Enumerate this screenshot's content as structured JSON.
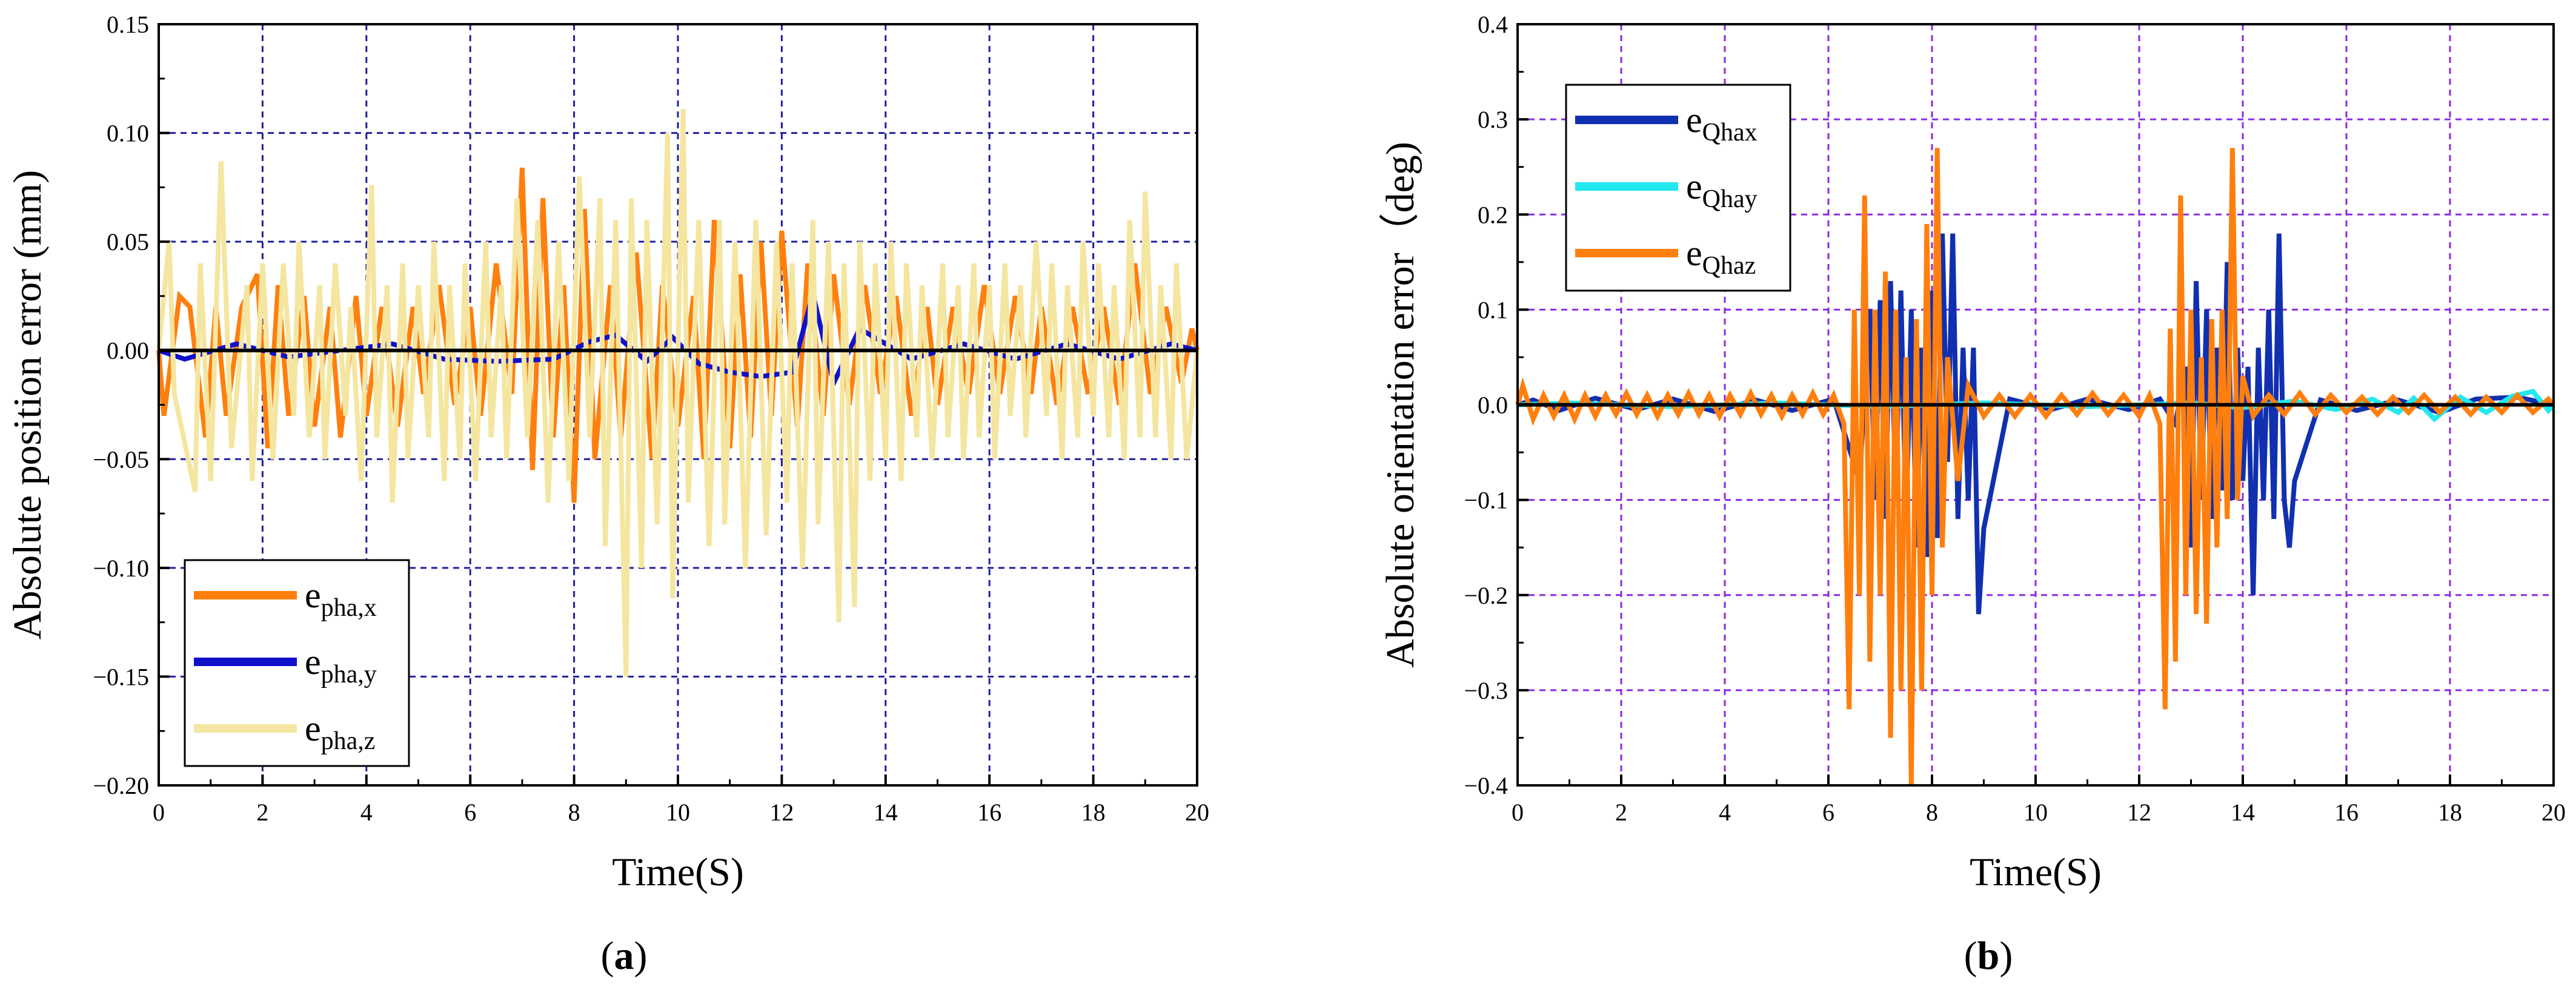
{
  "figure": {
    "panels": [
      "(a)",
      "(b)"
    ]
  },
  "chart_data": [
    {
      "type": "line",
      "panel": "(a)",
      "title": "",
      "xlabel": "Time(S)",
      "ylabel": "Absolute position error (mm)",
      "xlim": [
        0,
        20
      ],
      "ylim": [
        -0.2,
        0.15
      ],
      "xticks": [
        0,
        2,
        4,
        6,
        8,
        10,
        12,
        14,
        16,
        18,
        20
      ],
      "yticks": [
        -0.2,
        -0.15,
        -0.1,
        -0.05,
        0.0,
        0.05,
        0.1,
        0.15
      ],
      "ytick_labels": [
        "−0.20",
        "−0.15",
        "−0.10",
        "−0.05",
        "0.00",
        "0.05",
        "0.10",
        "0.15"
      ],
      "grid": true,
      "grid_color": "#1f1fa0",
      "legend_position": "bottom-left",
      "series": [
        {
          "name": "e",
          "subscript": "pha,x",
          "color": "#ff7f0e",
          "x": [
            0.1,
            0.4,
            0.6,
            0.9,
            1.1,
            1.3,
            1.6,
            1.9,
            2.1,
            2.3,
            2.5,
            2.8,
            3.0,
            3.3,
            3.5,
            3.8,
            4.0,
            4.3,
            4.6,
            4.9,
            5.1,
            5.4,
            5.7,
            6.0,
            6.2,
            6.5,
            6.8,
            7.0,
            7.2,
            7.4,
            7.6,
            7.8,
            8.0,
            8.2,
            8.4,
            8.7,
            8.9,
            9.2,
            9.5,
            9.7,
            10.0,
            10.3,
            10.5,
            10.7,
            11.0,
            11.2,
            11.4,
            11.6,
            11.8,
            12.0,
            12.3,
            12.5,
            12.8,
            13.0,
            13.3,
            13.6,
            13.9,
            14.2,
            14.5,
            14.8,
            15.0,
            15.3,
            15.6,
            15.9,
            16.2,
            16.5,
            16.8,
            17.0,
            17.3,
            17.6,
            17.9,
            18.2,
            18.5,
            18.8,
            19.1,
            19.4,
            19.7,
            19.9
          ],
          "values": [
            -0.03,
            0.025,
            0.02,
            -0.04,
            0.02,
            -0.03,
            0.02,
            0.035,
            -0.045,
            0.03,
            -0.03,
            0.025,
            -0.035,
            0.02,
            -0.04,
            0.025,
            -0.03,
            0.02,
            -0.035,
            0.02,
            -0.02,
            0.03,
            -0.025,
            0.02,
            -0.03,
            0.04,
            -0.02,
            0.084,
            -0.055,
            0.07,
            -0.04,
            0.03,
            -0.07,
            0.065,
            -0.05,
            0.03,
            -0.04,
            0.045,
            -0.05,
            0.03,
            -0.035,
            0.025,
            -0.05,
            0.06,
            -0.045,
            0.035,
            -0.04,
            0.05,
            -0.03,
            0.055,
            -0.035,
            0.04,
            -0.03,
            0.035,
            -0.025,
            0.03,
            -0.02,
            0.025,
            -0.03,
            0.02,
            -0.025,
            0.02,
            -0.02,
            0.03,
            -0.02,
            0.025,
            -0.02,
            0.02,
            -0.025,
            0.02,
            -0.02,
            0.02,
            -0.025,
            0.04,
            -0.02,
            0.02,
            -0.015,
            0.01
          ]
        },
        {
          "name": "e",
          "subscript": "pha,y",
          "color": "#1111cc",
          "x": [
            0.5,
            1.5,
            2.5,
            4.5,
            5.5,
            6.5,
            7.6,
            8.3,
            8.8,
            9.4,
            9.9,
            10.4,
            11.0,
            11.6,
            12.2,
            12.6,
            13.0,
            13.5,
            14.5,
            15.5,
            16.5,
            17.5,
            18.5,
            19.5
          ],
          "values": [
            -0.004,
            0.003,
            -0.003,
            0.003,
            -0.004,
            -0.005,
            -0.004,
            0.004,
            0.007,
            -0.005,
            0.006,
            -0.006,
            -0.01,
            -0.012,
            -0.01,
            0.026,
            -0.015,
            0.01,
            -0.004,
            0.003,
            -0.004,
            0.003,
            -0.004,
            0.003
          ]
        },
        {
          "name": "e",
          "subscript": "pha,z",
          "color": "#f4e6a0",
          "x": [
            0.2,
            0.3,
            0.7,
            0.8,
            1.0,
            1.2,
            1.4,
            1.7,
            1.8,
            2.0,
            2.2,
            2.4,
            2.6,
            2.7,
            2.9,
            3.1,
            3.2,
            3.4,
            3.6,
            3.7,
            3.9,
            4.1,
            4.2,
            4.4,
            4.5,
            4.7,
            4.8,
            5.0,
            5.2,
            5.3,
            5.5,
            5.6,
            5.8,
            5.9,
            6.1,
            6.3,
            6.4,
            6.6,
            6.7,
            6.9,
            7.1,
            7.3,
            7.5,
            7.7,
            7.9,
            8.1,
            8.3,
            8.5,
            8.6,
            8.8,
            9.0,
            9.1,
            9.3,
            9.4,
            9.6,
            9.8,
            9.9,
            10.1,
            10.2,
            10.4,
            10.6,
            10.8,
            10.9,
            11.1,
            11.3,
            11.5,
            11.7,
            11.9,
            12.1,
            12.2,
            12.4,
            12.6,
            12.7,
            12.9,
            13.1,
            13.2,
            13.4,
            13.5,
            13.7,
            13.8,
            14.0,
            14.1,
            14.3,
            14.4,
            14.6,
            14.7,
            14.9,
            15.1,
            15.2,
            15.4,
            15.5,
            15.7,
            15.8,
            16.0,
            16.1,
            16.3,
            16.4,
            16.6,
            16.7,
            16.9,
            17.1,
            17.2,
            17.4,
            17.5,
            17.7,
            17.8,
            18.0,
            18.1,
            18.3,
            18.4,
            18.6,
            18.7,
            18.9,
            19.0,
            19.2,
            19.3,
            19.5,
            19.6,
            19.8
          ],
          "values": [
            0.05,
            -0.02,
            -0.065,
            0.04,
            -0.06,
            0.087,
            -0.045,
            0.03,
            -0.06,
            0.04,
            -0.05,
            0.04,
            -0.03,
            0.05,
            -0.04,
            0.03,
            -0.05,
            0.04,
            -0.03,
            0.02,
            -0.06,
            0.076,
            -0.04,
            0.03,
            -0.07,
            0.04,
            -0.05,
            0.03,
            -0.04,
            0.05,
            -0.06,
            0.03,
            -0.05,
            0.04,
            -0.06,
            0.05,
            -0.04,
            0.03,
            -0.05,
            0.07,
            -0.04,
            0.06,
            -0.07,
            0.05,
            -0.06,
            0.08,
            -0.04,
            0.07,
            -0.09,
            0.06,
            -0.15,
            0.07,
            -0.1,
            0.06,
            -0.08,
            0.1,
            -0.114,
            0.111,
            -0.07,
            0.06,
            -0.09,
            0.06,
            -0.08,
            0.05,
            -0.1,
            0.06,
            -0.085,
            0.05,
            -0.07,
            0.04,
            -0.1,
            0.06,
            -0.08,
            0.05,
            -0.125,
            0.04,
            -0.118,
            0.05,
            -0.06,
            0.04,
            -0.05,
            0.05,
            -0.06,
            0.04,
            -0.04,
            0.03,
            -0.05,
            0.04,
            -0.04,
            0.03,
            -0.05,
            0.04,
            -0.04,
            0.03,
            -0.05,
            0.04,
            -0.03,
            0.03,
            -0.04,
            0.05,
            -0.03,
            0.04,
            -0.05,
            0.03,
            -0.04,
            0.05,
            -0.03,
            0.04,
            -0.04,
            0.03,
            -0.05,
            0.06,
            -0.04,
            0.073,
            -0.04,
            0.03,
            -0.05,
            0.04,
            -0.05
          ]
        }
      ]
    },
    {
      "type": "line",
      "panel": "(b)",
      "title": "",
      "xlabel": "Time(S)",
      "ylabel": "Absolute orientation error（deg)",
      "xlim": [
        0,
        20
      ],
      "ylim": [
        -0.4,
        0.4
      ],
      "xticks": [
        0,
        2,
        4,
        6,
        8,
        10,
        12,
        14,
        16,
        18,
        20
      ],
      "yticks": [
        -0.4,
        -0.3,
        -0.2,
        -0.1,
        0.0,
        0.1,
        0.2,
        0.3,
        0.4
      ],
      "ytick_labels": [
        "−0.4",
        "−0.3",
        "−0.2",
        "−0.1",
        "0.0",
        "0.1",
        "0.2",
        "0.3",
        "0.4"
      ],
      "grid": true,
      "grid_color": "#8a2be2",
      "legend_position": "top-left",
      "series": [
        {
          "name": "e",
          "subscript": "Qhax",
          "color": "#1030b0",
          "x": [
            0.3,
            0.8,
            1.5,
            2.3,
            3.0,
            3.8,
            4.6,
            5.3,
            6.1,
            6.6,
            6.8,
            6.9,
            7.0,
            7.1,
            7.2,
            7.3,
            7.4,
            7.5,
            7.6,
            7.7,
            7.8,
            7.9,
            8.0,
            8.1,
            8.2,
            8.3,
            8.4,
            8.5,
            8.6,
            8.7,
            8.8,
            8.9,
            9.0,
            9.5,
            10.3,
            11.0,
            11.8,
            12.4,
            12.7,
            12.9,
            13.0,
            13.1,
            13.2,
            13.3,
            13.4,
            13.5,
            13.6,
            13.7,
            13.8,
            13.9,
            14.0,
            14.1,
            14.2,
            14.3,
            14.4,
            14.5,
            14.6,
            14.7,
            14.8,
            14.9,
            15.0,
            15.5,
            16.2,
            17.0,
            17.8,
            18.5,
            19.3
          ],
          "values": [
            0.005,
            -0.006,
            0.007,
            -0.005,
            0.006,
            -0.007,
            0.005,
            -0.006,
            0.006,
            -0.08,
            0.1,
            -0.1,
            0.11,
            -0.12,
            0.13,
            -0.1,
            0.12,
            -0.13,
            0.1,
            -0.15,
            0.06,
            -0.16,
            0.12,
            -0.14,
            0.18,
            -0.06,
            0.18,
            -0.12,
            0.06,
            -0.1,
            0.06,
            -0.22,
            -0.13,
            0.006,
            -0.005,
            0.006,
            -0.005,
            0.006,
            -0.02,
            0.04,
            -0.15,
            0.13,
            -0.1,
            0.1,
            -0.12,
            0.06,
            -0.09,
            0.15,
            -0.1,
            0.06,
            -0.08,
            0.04,
            -0.2,
            0.06,
            -0.1,
            0.1,
            -0.12,
            0.18,
            -0.1,
            -0.15,
            -0.08,
            0.005,
            -0.006,
            0.005,
            -0.008,
            0.006,
            0.008
          ]
        },
        {
          "name": "e",
          "subscript": "Qhay",
          "color": "#22e8f0",
          "x": [
            1.0,
            3.0,
            5.0,
            7.0,
            9.0,
            11.0,
            13.0,
            14.0,
            15.0,
            15.8,
            16.5,
            17.0,
            17.3,
            17.7,
            18.2,
            18.7,
            19.2,
            19.6,
            19.9
          ],
          "values": [
            0.002,
            -0.002,
            0.002,
            -0.002,
            0.002,
            -0.002,
            0.002,
            -0.003,
            0.004,
            -0.005,
            0.006,
            -0.008,
            0.007,
            -0.015,
            0.008,
            -0.008,
            0.009,
            0.014,
            -0.006
          ]
        },
        {
          "name": "e",
          "subscript": "Qhaz",
          "color": "#ff7f0e",
          "x": [
            0.1,
            0.3,
            0.5,
            0.7,
            0.9,
            1.1,
            1.3,
            1.5,
            1.7,
            1.9,
            2.1,
            2.3,
            2.5,
            2.7,
            2.9,
            3.1,
            3.3,
            3.5,
            3.7,
            3.9,
            4.1,
            4.3,
            4.5,
            4.7,
            4.9,
            5.1,
            5.3,
            5.5,
            5.7,
            5.9,
            6.1,
            6.3,
            6.4,
            6.5,
            6.6,
            6.7,
            6.8,
            6.9,
            7.0,
            7.1,
            7.2,
            7.3,
            7.4,
            7.5,
            7.6,
            7.7,
            7.8,
            7.9,
            8.0,
            8.1,
            8.2,
            8.3,
            8.5,
            8.7,
            9.0,
            9.3,
            9.6,
            9.9,
            10.2,
            10.5,
            10.8,
            11.1,
            11.4,
            11.7,
            12.0,
            12.2,
            12.4,
            12.5,
            12.6,
            12.7,
            12.8,
            12.9,
            13.0,
            13.1,
            13.2,
            13.3,
            13.4,
            13.5,
            13.6,
            13.7,
            13.8,
            13.9,
            14.0,
            14.2,
            14.5,
            14.8,
            15.1,
            15.4,
            15.7,
            16.0,
            16.3,
            16.6,
            16.9,
            17.2,
            17.5,
            17.8,
            18.1,
            18.4,
            18.7,
            19.0,
            19.3,
            19.6,
            19.9
          ],
          "values": [
            0.02,
            -0.015,
            0.01,
            -0.012,
            0.01,
            -0.015,
            0.01,
            -0.012,
            0.01,
            -0.01,
            0.012,
            -0.01,
            0.01,
            -0.012,
            0.01,
            -0.01,
            0.012,
            -0.01,
            0.01,
            -0.012,
            0.01,
            -0.01,
            0.012,
            -0.01,
            0.01,
            -0.012,
            0.01,
            -0.01,
            0.012,
            -0.01,
            0.01,
            -0.02,
            -0.32,
            0.1,
            -0.2,
            0.22,
            -0.27,
            0.1,
            -0.2,
            0.14,
            -0.35,
            0.1,
            -0.3,
            0.05,
            -0.4,
            0.09,
            -0.3,
            0.19,
            -0.2,
            0.27,
            -0.15,
            0.05,
            -0.08,
            0.02,
            -0.012,
            0.01,
            -0.012,
            0.01,
            -0.012,
            0.01,
            -0.01,
            0.012,
            -0.01,
            0.01,
            -0.012,
            0.01,
            -0.02,
            -0.32,
            0.08,
            -0.27,
            0.22,
            -0.2,
            0.1,
            -0.22,
            0.05,
            -0.23,
            0.09,
            -0.15,
            0.1,
            -0.12,
            0.27,
            -0.1,
            0.03,
            -0.012,
            0.01,
            -0.01,
            0.012,
            -0.01,
            0.01,
            -0.008,
            0.008,
            -0.01,
            0.008,
            -0.008,
            0.01,
            -0.008,
            0.008,
            -0.01,
            0.008,
            -0.008,
            0.01,
            -0.008,
            0.006
          ]
        }
      ]
    }
  ]
}
